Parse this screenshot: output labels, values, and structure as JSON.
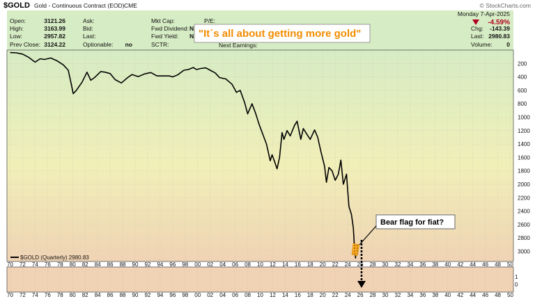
{
  "header": {
    "symbol": "$GOLD",
    "name": "Gold - Continuous Contract (EOD)",
    "exchange": "CME",
    "date": "Monday  7-Apr-2025",
    "change_pct": "-4.59%",
    "watermark": "© StockCharts.com",
    "left_stats": [
      {
        "label": "Open:",
        "value": "3121.26"
      },
      {
        "label": "High:",
        "value": "3163.99"
      },
      {
        "label": "Low:",
        "value": "2957.82"
      },
      {
        "label": "Prev Close:",
        "value": "3124.22"
      }
    ],
    "mid_stats": [
      {
        "label": "Ask:",
        "value": ""
      },
      {
        "label": "Bid:",
        "value": ""
      },
      {
        "label": "Last:",
        "value": ""
      },
      {
        "label": "Optionable:",
        "value": "no"
      }
    ],
    "cap_stats": [
      {
        "label": "Mkt Cap:",
        "value": ""
      },
      {
        "label": "Fwd Dividend:",
        "value": "N/"
      },
      {
        "label": "Fwd Yield:",
        "value": "N/"
      },
      {
        "label": "SCTR:",
        "value": ""
      }
    ],
    "pe_label": "P/E:",
    "next_earnings_label": "Next Earnings:",
    "right_stats": [
      {
        "label": "Chg:",
        "value": "-143.39"
      },
      {
        "label": "Last:",
        "value": "2980.83"
      },
      {
        "label": "Volume:",
        "value": "0"
      }
    ]
  },
  "annotations": {
    "title_callout": "\"It`s all about getting more gold\"",
    "bear_flag": "Bear flag for fiat?"
  },
  "legend": {
    "label": "$GOLD (Quarterly) 2980.83"
  },
  "colors": {
    "line": "#000000",
    "callout_text": "#f28c00",
    "down_red": "#b00020",
    "bg_top": "#d6ecc4",
    "bg_mid": "#f1efb8",
    "bg_bottom": "#f0d3b4",
    "flag_highlight": "#f5a623"
  },
  "chart_data": {
    "type": "line",
    "y_inverted": true,
    "x_ticks": [
      "70",
      "72",
      "74",
      "76",
      "78",
      "80",
      "82",
      "84",
      "86",
      "88",
      "90",
      "92",
      "94",
      "96",
      "98",
      "00",
      "02",
      "04",
      "06",
      "08",
      "10",
      "12",
      "14",
      "16",
      "18",
      "20",
      "22",
      "24",
      "26",
      "28",
      "30",
      "32",
      "34",
      "36",
      "38",
      "40",
      "42",
      "44",
      "46",
      "48",
      "50"
    ],
    "y_ticks": [
      200,
      400,
      600,
      800,
      1000,
      1200,
      1400,
      1600,
      1800,
      2000,
      2200,
      2400,
      2600,
      2800,
      3000
    ],
    "ylim": [
      0,
      3150
    ],
    "xlim": [
      1969.5,
      2050.5
    ],
    "lower_panel_ticks": [
      1,
      0
    ],
    "series": [
      {
        "name": "$GOLD (Quarterly)",
        "points": [
          [
            1970.0,
            37
          ],
          [
            1971.0,
            41
          ],
          [
            1972.0,
            60
          ],
          [
            1973.0,
            110
          ],
          [
            1974.0,
            180
          ],
          [
            1974.8,
            130
          ],
          [
            1975.5,
            140
          ],
          [
            1976.5,
            118
          ],
          [
            1977.5,
            160
          ],
          [
            1978.5,
            220
          ],
          [
            1979.3,
            300
          ],
          [
            1979.8,
            512
          ],
          [
            1980.1,
            650
          ],
          [
            1980.6,
            600
          ],
          [
            1981.5,
            480
          ],
          [
            1982.3,
            330
          ],
          [
            1982.9,
            450
          ],
          [
            1983.5,
            410
          ],
          [
            1984.5,
            320
          ],
          [
            1985.2,
            330
          ],
          [
            1986.0,
            350
          ],
          [
            1986.8,
            440
          ],
          [
            1987.8,
            490
          ],
          [
            1988.8,
            410
          ],
          [
            1989.5,
            365
          ],
          [
            1990.5,
            395
          ],
          [
            1991.5,
            355
          ],
          [
            1992.5,
            335
          ],
          [
            1993.5,
            385
          ],
          [
            1994.5,
            385
          ],
          [
            1995.5,
            385
          ],
          [
            1996.0,
            400
          ],
          [
            1996.8,
            370
          ],
          [
            1997.8,
            300
          ],
          [
            1998.5,
            290
          ],
          [
            1999.3,
            260
          ],
          [
            1999.8,
            290
          ],
          [
            2000.5,
            275
          ],
          [
            2001.3,
            265
          ],
          [
            2002.0,
            300
          ],
          [
            2002.8,
            340
          ],
          [
            2003.5,
            410
          ],
          [
            2004.5,
            430
          ],
          [
            2005.5,
            510
          ],
          [
            2006.2,
            630
          ],
          [
            2006.8,
            600
          ],
          [
            2007.5,
            780
          ],
          [
            2008.0,
            950
          ],
          [
            2008.7,
            800
          ],
          [
            2009.3,
            950
          ],
          [
            2009.8,
            1100
          ],
          [
            2010.6,
            1300
          ],
          [
            2011.0,
            1400
          ],
          [
            2011.6,
            1650
          ],
          [
            2011.9,
            1560
          ],
          [
            2012.3,
            1660
          ],
          [
            2012.7,
            1770
          ],
          [
            2013.1,
            1600
          ],
          [
            2013.5,
            1230
          ],
          [
            2013.8,
            1330
          ],
          [
            2014.3,
            1200
          ],
          [
            2014.8,
            1280
          ],
          [
            2015.5,
            1120
          ],
          [
            2015.9,
            1060
          ],
          [
            2016.5,
            1330
          ],
          [
            2016.9,
            1170
          ],
          [
            2017.5,
            1260
          ],
          [
            2018.0,
            1330
          ],
          [
            2018.7,
            1190
          ],
          [
            2019.2,
            1300
          ],
          [
            2019.7,
            1510
          ],
          [
            2020.3,
            1730
          ],
          [
            2020.6,
            1970
          ],
          [
            2021.0,
            1750
          ],
          [
            2021.5,
            1800
          ],
          [
            2022.0,
            1940
          ],
          [
            2022.5,
            1850
          ],
          [
            2022.9,
            1640
          ],
          [
            2023.3,
            2000
          ],
          [
            2023.8,
            1850
          ],
          [
            2024.2,
            2330
          ],
          [
            2024.6,
            2450
          ],
          [
            2024.9,
            2650
          ],
          [
            2025.05,
            2900
          ],
          [
            2025.2,
            3050
          ],
          [
            2025.25,
            3100
          ],
          [
            2025.27,
            2980.83
          ]
        ]
      }
    ]
  }
}
